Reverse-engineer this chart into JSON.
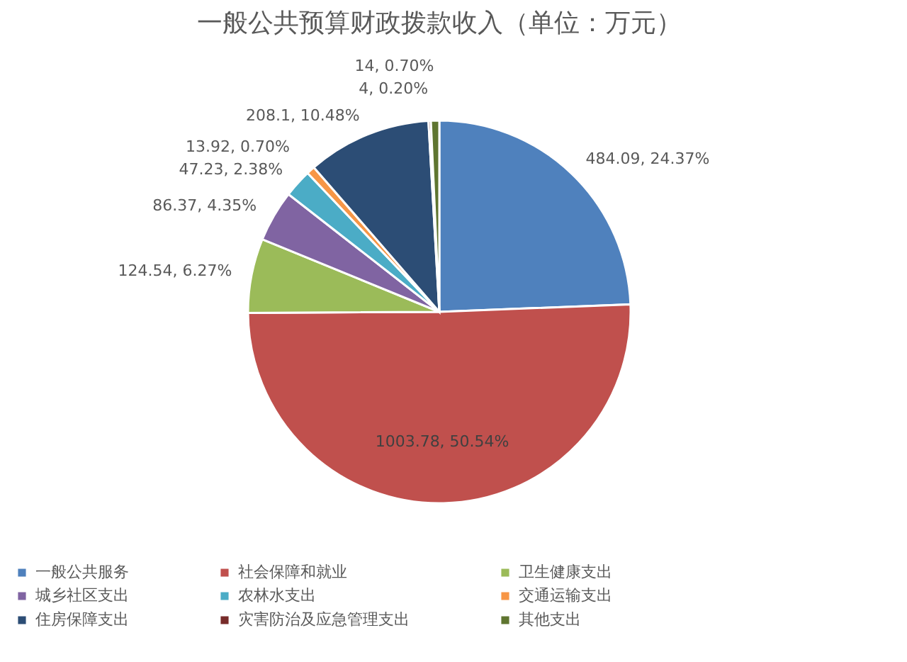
{
  "chart_data": {
    "type": "pie",
    "title": "一般公共预算财政拨款收入（单位：万元）",
    "categories": [
      "一般公共服务",
      "社会保障和就业",
      "卫生健康支出",
      "城乡社区支出",
      "农林水支出",
      "交通运输支出",
      "住房保障支出",
      "灾害防治及应急管理支出",
      "其他支出"
    ],
    "values": [
      484.09,
      1003.78,
      124.54,
      86.37,
      47.23,
      13.92,
      208.1,
      4,
      14
    ],
    "colors": [
      "#4f81bd",
      "#c0504d",
      "#9bbb59",
      "#8064a2",
      "#4bacc6",
      "#f79646",
      "#2c4d75",
      "#772c2a",
      "#5f7530"
    ],
    "value_labels": [
      "484.09, 24.37%",
      "1003.78, 50.54%",
      "124.54, 6.27%",
      "86.37, 4.35%",
      "47.23, 2.38%",
      "13.92, 0.70%",
      "208.1, 10.48%",
      "4, 0.20%",
      "14, 0.70%"
    ],
    "legend": "bottom"
  }
}
